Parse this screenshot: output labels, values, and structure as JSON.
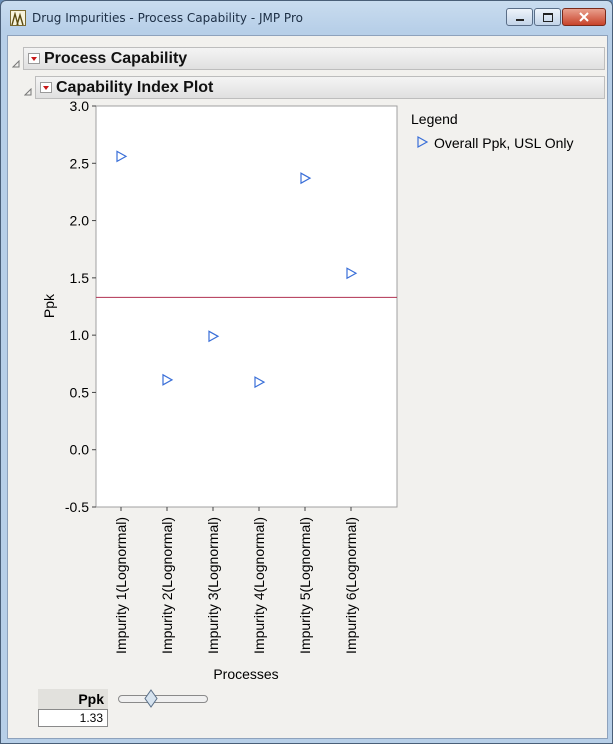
{
  "window": {
    "title": "Drug Impurities - Process Capability - JMP Pro"
  },
  "outline": {
    "process_capability": "Process Capability",
    "capability_index_plot": "Capability Index Plot"
  },
  "legend": {
    "title": "Legend",
    "entry": "Overall Ppk, USL Only"
  },
  "ppk_control": {
    "label": "Ppk",
    "value": "1.33",
    "slider_fraction": 0.37
  },
  "chart_data": {
    "type": "scatter",
    "xlabel": "Processes",
    "ylabel": "Ppk",
    "ylim": [
      -0.5,
      3.0
    ],
    "yticks": [
      "-0.5",
      "0.0",
      "0.5",
      "1.0",
      "1.5",
      "2.0",
      "2.5",
      "3.0"
    ],
    "categories": [
      "Impurity 1(Lognormal)",
      "Impurity 2(Lognormal)",
      "Impurity 3(Lognormal)",
      "Impurity 4(Lognormal)",
      "Impurity 5(Lognormal)",
      "Impurity 6(Lognormal)"
    ],
    "series": [
      {
        "name": "Overall Ppk, USL Only",
        "values": [
          2.56,
          0.61,
          0.99,
          0.59,
          2.37,
          1.54
        ]
      }
    ],
    "reference_line": 1.33,
    "colors": {
      "marker": "#3a6fd8",
      "reference": "#b03050"
    },
    "grid": false,
    "legend_position": "right"
  }
}
